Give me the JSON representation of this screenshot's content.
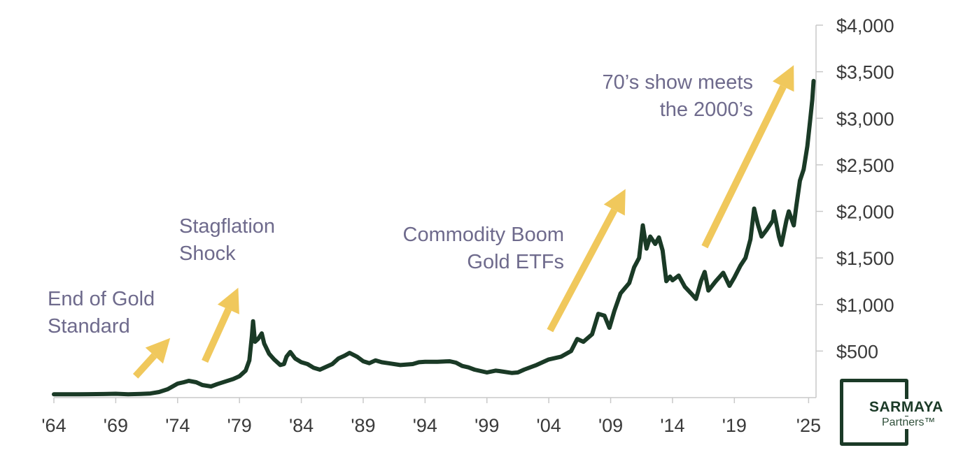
{
  "chart_data": {
    "type": "line",
    "x_ticks": [
      "'64",
      "'69",
      "'74",
      "'79",
      "'84",
      "'89",
      "'94",
      "'99",
      "'04",
      "'09",
      "'14",
      "'19",
      "'25"
    ],
    "y_ticks": [
      "$500",
      "$1,000",
      "$1,500",
      "$2,000",
      "$2,500",
      "$3,000",
      "$3,500",
      "$4,000"
    ],
    "ylim": [
      0,
      4000
    ],
    "xlim": [
      1964,
      2025.6
    ],
    "grid": false,
    "y_axis_side": "right",
    "line_color": "#1a3a26",
    "arrow_color": "#f0c85c",
    "series": [
      {
        "points": [
          [
            1964.0,
            35
          ],
          [
            1966.0,
            35
          ],
          [
            1968.0,
            38
          ],
          [
            1969.0,
            41
          ],
          [
            1970.0,
            36
          ],
          [
            1971.0,
            40
          ],
          [
            1971.8,
            44
          ],
          [
            1972.5,
            60
          ],
          [
            1973.2,
            90
          ],
          [
            1973.6,
            120
          ],
          [
            1974.0,
            150
          ],
          [
            1974.5,
            165
          ],
          [
            1974.9,
            180
          ],
          [
            1975.5,
            165
          ],
          [
            1976.0,
            135
          ],
          [
            1976.7,
            120
          ],
          [
            1977.2,
            145
          ],
          [
            1977.8,
            170
          ],
          [
            1978.5,
            200
          ],
          [
            1979.0,
            230
          ],
          [
            1979.5,
            290
          ],
          [
            1979.8,
            400
          ],
          [
            1980.0,
            660
          ],
          [
            1980.1,
            820
          ],
          [
            1980.25,
            600
          ],
          [
            1980.5,
            630
          ],
          [
            1980.8,
            690
          ],
          [
            1981.0,
            580
          ],
          [
            1981.4,
            470
          ],
          [
            1981.8,
            410
          ],
          [
            1982.3,
            350
          ],
          [
            1982.6,
            360
          ],
          [
            1982.8,
            440
          ],
          [
            1983.1,
            490
          ],
          [
            1983.5,
            420
          ],
          [
            1984.0,
            380
          ],
          [
            1984.5,
            360
          ],
          [
            1985.0,
            320
          ],
          [
            1985.5,
            300
          ],
          [
            1986.0,
            330
          ],
          [
            1986.5,
            360
          ],
          [
            1987.0,
            420
          ],
          [
            1987.5,
            450
          ],
          [
            1987.9,
            480
          ],
          [
            1988.5,
            440
          ],
          [
            1989.0,
            390
          ],
          [
            1989.5,
            370
          ],
          [
            1990.0,
            400
          ],
          [
            1990.5,
            380
          ],
          [
            1991.0,
            370
          ],
          [
            1992.0,
            350
          ],
          [
            1993.0,
            360
          ],
          [
            1993.5,
            380
          ],
          [
            1994.0,
            385
          ],
          [
            1995.0,
            385
          ],
          [
            1996.0,
            390
          ],
          [
            1996.5,
            375
          ],
          [
            1997.0,
            340
          ],
          [
            1997.5,
            325
          ],
          [
            1998.0,
            300
          ],
          [
            1999.0,
            270
          ],
          [
            1999.7,
            290
          ],
          [
            2000.0,
            285
          ],
          [
            2001.0,
            265
          ],
          [
            2001.5,
            270
          ],
          [
            2002.0,
            300
          ],
          [
            2003.0,
            350
          ],
          [
            2004.0,
            410
          ],
          [
            2005.0,
            440
          ],
          [
            2005.8,
            500
          ],
          [
            2006.3,
            630
          ],
          [
            2006.8,
            600
          ],
          [
            2007.5,
            680
          ],
          [
            2008.0,
            900
          ],
          [
            2008.5,
            880
          ],
          [
            2008.9,
            750
          ],
          [
            2009.3,
            930
          ],
          [
            2009.8,
            1120
          ],
          [
            2010.5,
            1230
          ],
          [
            2010.9,
            1400
          ],
          [
            2011.3,
            1500
          ],
          [
            2011.6,
            1850
          ],
          [
            2011.9,
            1600
          ],
          [
            2012.2,
            1730
          ],
          [
            2012.6,
            1650
          ],
          [
            2012.9,
            1720
          ],
          [
            2013.2,
            1580
          ],
          [
            2013.5,
            1250
          ],
          [
            2013.8,
            1300
          ],
          [
            2014.0,
            1260
          ],
          [
            2014.5,
            1310
          ],
          [
            2015.0,
            1190
          ],
          [
            2015.5,
            1120
          ],
          [
            2015.9,
            1060
          ],
          [
            2016.3,
            1250
          ],
          [
            2016.6,
            1350
          ],
          [
            2016.9,
            1150
          ],
          [
            2017.5,
            1250
          ],
          [
            2018.1,
            1340
          ],
          [
            2018.6,
            1200
          ],
          [
            2019.0,
            1290
          ],
          [
            2019.5,
            1420
          ],
          [
            2019.9,
            1500
          ],
          [
            2020.3,
            1700
          ],
          [
            2020.6,
            2030
          ],
          [
            2020.9,
            1860
          ],
          [
            2021.2,
            1730
          ],
          [
            2021.6,
            1800
          ],
          [
            2022.1,
            1900
          ],
          [
            2022.2,
            2000
          ],
          [
            2022.6,
            1730
          ],
          [
            2022.8,
            1640
          ],
          [
            2023.2,
            1900
          ],
          [
            2023.4,
            2000
          ],
          [
            2023.8,
            1850
          ],
          [
            2024.0,
            2050
          ],
          [
            2024.3,
            2330
          ],
          [
            2024.6,
            2450
          ],
          [
            2024.9,
            2700
          ],
          [
            2025.1,
            2950
          ],
          [
            2025.3,
            3200
          ],
          [
            2025.4,
            3400
          ]
        ]
      }
    ],
    "annotations": [
      {
        "lines": [
          "End of Gold",
          "Standard"
        ],
        "arrow_from": [
          1970.6,
          230
        ],
        "arrow_to": [
          1973.4,
          640
        ]
      },
      {
        "lines": [
          "Stagflation",
          "Shock"
        ],
        "arrow_from": [
          1976.2,
          390
        ],
        "arrow_to": [
          1978.9,
          1180
        ]
      },
      {
        "lines": [
          "Commodity Boom",
          "Gold ETFs"
        ],
        "arrow_from": [
          2004.1,
          720
        ],
        "arrow_to": [
          2010.2,
          2240
        ]
      },
      {
        "lines": [
          "70’s show meets",
          "the 2000’s"
        ],
        "arrow_from": [
          2016.6,
          1620
        ],
        "arrow_to": [
          2023.8,
          3570
        ]
      }
    ]
  },
  "logo": {
    "name": "SARMAYA",
    "sub": "Partners™"
  }
}
